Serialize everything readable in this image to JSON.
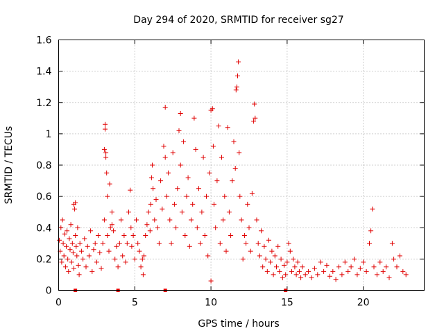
{
  "chart_data": {
    "type": "scatter",
    "title": "Day 294 of 2020, SRMTID for receiver sg27",
    "xlabel": "GPS time / hours",
    "ylabel": "SRMTID / TECUs",
    "xlim": [
      0,
      24
    ],
    "ylim": [
      0,
      1.6
    ],
    "x_ticks": [
      0,
      5,
      10,
      15,
      20
    ],
    "x_tick_labels": [
      "0",
      "5",
      "10",
      "15",
      "20"
    ],
    "y_ticks": [
      0,
      0.2,
      0.4,
      0.6,
      0.8,
      1.0,
      1.2,
      1.4,
      1.6
    ],
    "y_tick_labels": [
      "0",
      "0.2",
      "0.4",
      "0.6",
      "0.8",
      "1",
      "1.2",
      "1.4",
      "1.6"
    ],
    "grid": true,
    "marker": "plus",
    "color": "#e00000",
    "series": [
      {
        "name": "SRMTID",
        "points": [
          [
            0.05,
            0.32
          ],
          [
            0.1,
            0.25
          ],
          [
            0.15,
            0.4
          ],
          [
            0.2,
            0.18
          ],
          [
            0.25,
            0.45
          ],
          [
            0.3,
            0.3
          ],
          [
            0.35,
            0.22
          ],
          [
            0.4,
            0.36
          ],
          [
            0.45,
            0.15
          ],
          [
            0.5,
            0.28
          ],
          [
            0.55,
            0.38
          ],
          [
            0.6,
            0.2
          ],
          [
            0.65,
            0.12
          ],
          [
            0.7,
            0.33
          ],
          [
            0.75,
            0.26
          ],
          [
            0.8,
            0.42
          ],
          [
            0.85,
            0.18
          ],
          [
            0.9,
            0.3
          ],
          [
            0.95,
            0.24
          ],
          [
            1.0,
            0.14
          ],
          [
            1.0,
            0.55
          ],
          [
            1.05,
            0.52
          ],
          [
            1.1,
            0.56
          ],
          [
            1.1,
            0.35
          ],
          [
            1.15,
            0.28
          ],
          [
            1.2,
            0.22
          ],
          [
            1.25,
            0.4
          ],
          [
            1.3,
            0.16
          ],
          [
            1.35,
            0.1
          ],
          [
            1.4,
            0.3
          ],
          [
            1.5,
            0.25
          ],
          [
            1.6,
            0.2
          ],
          [
            1.7,
            0.33
          ],
          [
            1.8,
            0.15
          ],
          [
            1.9,
            0.28
          ],
          [
            2.0,
            0.22
          ],
          [
            2.1,
            0.38
          ],
          [
            2.2,
            0.12
          ],
          [
            2.3,
            0.26
          ],
          [
            2.4,
            0.3
          ],
          [
            2.5,
            0.18
          ],
          [
            2.6,
            0.35
          ],
          [
            2.7,
            0.24
          ],
          [
            2.8,
            0.14
          ],
          [
            2.9,
            0.3
          ],
          [
            3.0,
            0.45
          ],
          [
            3.0,
            0.9
          ],
          [
            3.05,
            1.06
          ],
          [
            3.05,
            1.03
          ],
          [
            3.1,
            0.85
          ],
          [
            3.1,
            0.88
          ],
          [
            3.15,
            0.75
          ],
          [
            3.2,
            0.6
          ],
          [
            3.2,
            0.35
          ],
          [
            3.3,
            0.25
          ],
          [
            3.35,
            0.68
          ],
          [
            3.4,
            0.4
          ],
          [
            3.5,
            0.5
          ],
          [
            3.5,
            0.42
          ],
          [
            3.6,
            0.38
          ],
          [
            3.7,
            0.2
          ],
          [
            3.8,
            0.28
          ],
          [
            3.9,
            0.15
          ],
          [
            4.0,
            0.3
          ],
          [
            4.1,
            0.45
          ],
          [
            4.2,
            0.22
          ],
          [
            4.3,
            0.35
          ],
          [
            4.4,
            0.18
          ],
          [
            4.5,
            0.3
          ],
          [
            4.6,
            0.5
          ],
          [
            4.7,
            0.64
          ],
          [
            4.75,
            0.4
          ],
          [
            4.8,
            0.28
          ],
          [
            4.9,
            0.35
          ],
          [
            5.0,
            0.2
          ],
          [
            5.1,
            0.45
          ],
          [
            5.2,
            0.3
          ],
          [
            5.3,
            0.25
          ],
          [
            5.4,
            0.15
          ],
          [
            5.5,
            0.2
          ],
          [
            5.55,
            0.1
          ],
          [
            5.6,
            0.22
          ],
          [
            5.7,
            0.35
          ],
          [
            5.8,
            0.42
          ],
          [
            5.9,
            0.5
          ],
          [
            6.0,
            0.38
          ],
          [
            6.05,
            0.55
          ],
          [
            6.1,
            0.72
          ],
          [
            6.15,
            0.8
          ],
          [
            6.2,
            0.65
          ],
          [
            6.3,
            0.45
          ],
          [
            6.4,
            0.58
          ],
          [
            6.5,
            0.4
          ],
          [
            6.6,
            0.3
          ],
          [
            6.7,
            0.7
          ],
          [
            6.8,
            0.52
          ],
          [
            6.9,
            0.92
          ],
          [
            7.0,
            1.17
          ],
          [
            7.0,
            0.85
          ],
          [
            7.1,
            0.6
          ],
          [
            7.2,
            0.75
          ],
          [
            7.3,
            0.45
          ],
          [
            7.4,
            0.3
          ],
          [
            7.5,
            0.88
          ],
          [
            7.6,
            0.55
          ],
          [
            7.7,
            0.4
          ],
          [
            7.8,
            0.65
          ],
          [
            7.9,
            1.02
          ],
          [
            8.0,
            1.13
          ],
          [
            8.0,
            0.8
          ],
          [
            8.1,
            0.5
          ],
          [
            8.2,
            0.95
          ],
          [
            8.3,
            0.35
          ],
          [
            8.4,
            0.6
          ],
          [
            8.5,
            0.72
          ],
          [
            8.6,
            0.28
          ],
          [
            8.7,
            0.45
          ],
          [
            8.8,
            0.55
          ],
          [
            8.9,
            1.1
          ],
          [
            9.0,
            0.9
          ],
          [
            9.1,
            0.4
          ],
          [
            9.2,
            0.65
          ],
          [
            9.3,
            0.3
          ],
          [
            9.4,
            0.5
          ],
          [
            9.5,
            0.85
          ],
          [
            9.6,
            0.35
          ],
          [
            9.7,
            0.6
          ],
          [
            9.8,
            0.22
          ],
          [
            9.9,
            0.75
          ],
          [
            10.0,
            0.06
          ],
          [
            10.0,
            1.15
          ],
          [
            10.1,
            1.16
          ],
          [
            10.15,
            0.92
          ],
          [
            10.2,
            0.55
          ],
          [
            10.3,
            0.4
          ],
          [
            10.4,
            0.7
          ],
          [
            10.5,
            1.05
          ],
          [
            10.6,
            0.3
          ],
          [
            10.7,
            0.85
          ],
          [
            10.8,
            0.45
          ],
          [
            10.9,
            0.6
          ],
          [
            11.0,
            0.25
          ],
          [
            11.1,
            1.04
          ],
          [
            11.2,
            0.5
          ],
          [
            11.3,
            0.35
          ],
          [
            11.4,
            0.7
          ],
          [
            11.5,
            0.95
          ],
          [
            11.6,
            0.78
          ],
          [
            11.65,
            1.28
          ],
          [
            11.7,
            1.3
          ],
          [
            11.75,
            1.37
          ],
          [
            11.8,
            1.46
          ],
          [
            11.85,
            0.88
          ],
          [
            11.9,
            0.6
          ],
          [
            12.0,
            0.45
          ],
          [
            12.1,
            0.2
          ],
          [
            12.2,
            0.35
          ],
          [
            12.3,
            0.3
          ],
          [
            12.4,
            0.55
          ],
          [
            12.5,
            0.4
          ],
          [
            12.6,
            0.25
          ],
          [
            12.7,
            0.62
          ],
          [
            12.8,
            1.08
          ],
          [
            12.85,
            1.19
          ],
          [
            12.9,
            1.1
          ],
          [
            13.0,
            0.45
          ],
          [
            13.1,
            0.3
          ],
          [
            13.2,
            0.22
          ],
          [
            13.3,
            0.38
          ],
          [
            13.4,
            0.15
          ],
          [
            13.5,
            0.28
          ],
          [
            13.6,
            0.2
          ],
          [
            13.7,
            0.12
          ],
          [
            13.8,
            0.32
          ],
          [
            13.9,
            0.18
          ],
          [
            14.0,
            0.25
          ],
          [
            14.1,
            0.1
          ],
          [
            14.2,
            0.22
          ],
          [
            14.3,
            0.15
          ],
          [
            14.4,
            0.28
          ],
          [
            14.5,
            0.12
          ],
          [
            14.6,
            0.2
          ],
          [
            14.7,
            0.08
          ],
          [
            14.8,
            0.16
          ],
          [
            14.9,
            0.1
          ],
          [
            15.0,
            0.18
          ],
          [
            15.1,
            0.3
          ],
          [
            15.2,
            0.25
          ],
          [
            15.3,
            0.12
          ],
          [
            15.4,
            0.2
          ],
          [
            15.5,
            0.15
          ],
          [
            15.6,
            0.1
          ],
          [
            15.7,
            0.18
          ],
          [
            15.8,
            0.12
          ],
          [
            15.9,
            0.08
          ],
          [
            16.0,
            0.15
          ],
          [
            16.2,
            0.1
          ],
          [
            16.4,
            0.12
          ],
          [
            16.6,
            0.08
          ],
          [
            16.8,
            0.14
          ],
          [
            17.0,
            0.1
          ],
          [
            17.2,
            0.18
          ],
          [
            17.4,
            0.12
          ],
          [
            17.6,
            0.16
          ],
          [
            17.8,
            0.09
          ],
          [
            18.0,
            0.12
          ],
          [
            18.2,
            0.07
          ],
          [
            18.4,
            0.15
          ],
          [
            18.6,
            0.1
          ],
          [
            18.8,
            0.18
          ],
          [
            19.0,
            0.12
          ],
          [
            19.2,
            0.15
          ],
          [
            19.4,
            0.2
          ],
          [
            19.6,
            0.1
          ],
          [
            19.8,
            0.14
          ],
          [
            20.0,
            0.18
          ],
          [
            20.2,
            0.12
          ],
          [
            20.4,
            0.3
          ],
          [
            20.5,
            0.38
          ],
          [
            20.6,
            0.52
          ],
          [
            20.7,
            0.15
          ],
          [
            20.9,
            0.1
          ],
          [
            21.1,
            0.18
          ],
          [
            21.3,
            0.12
          ],
          [
            21.5,
            0.15
          ],
          [
            21.7,
            0.08
          ],
          [
            21.9,
            0.3
          ],
          [
            22.0,
            0.2
          ],
          [
            22.2,
            0.15
          ],
          [
            22.4,
            0.22
          ],
          [
            22.6,
            0.12
          ],
          [
            22.8,
            0.1
          ]
        ]
      }
    ],
    "gap_markers_x": [
      1.1,
      3.9,
      7.0,
      14.9
    ]
  }
}
